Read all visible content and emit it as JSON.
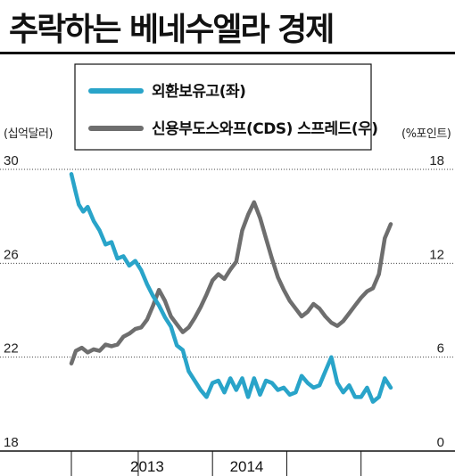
{
  "title": "추락하는 베네수엘라 경제",
  "colors": {
    "fx": "#29a4c9",
    "cds": "#6e6e6e"
  },
  "chart_data": {
    "type": "line",
    "title": "추락하는 베네수엘라 경제",
    "y_left": {
      "unit": "(십억달러)",
      "range": [
        18,
        30
      ],
      "ticks": [
        "30",
        "26",
        "22",
        "18"
      ]
    },
    "y_right": {
      "unit": "(%포인트)",
      "range": [
        0,
        18
      ],
      "ticks": [
        "18",
        "12",
        "6",
        "0"
      ]
    },
    "x_labels": [
      "2013",
      "2014"
    ],
    "x_range": [
      2012.55,
      2014.7
    ],
    "grid": "horizontal dotted",
    "series": [
      {
        "name": "외환보유고(좌)",
        "axis": "left",
        "points": [
          [
            2012.55,
            29.8
          ],
          [
            2012.58,
            29.0
          ],
          [
            2012.6,
            28.5
          ],
          [
            2012.63,
            28.2
          ],
          [
            2012.66,
            28.4
          ],
          [
            2012.7,
            27.8
          ],
          [
            2012.74,
            27.4
          ],
          [
            2012.78,
            26.8
          ],
          [
            2012.82,
            26.9
          ],
          [
            2012.86,
            26.2
          ],
          [
            2012.9,
            26.3
          ],
          [
            2012.94,
            25.9
          ],
          [
            2012.98,
            26.1
          ],
          [
            2013.02,
            25.7
          ],
          [
            2013.06,
            25.1
          ],
          [
            2013.1,
            24.6
          ],
          [
            2013.14,
            24.2
          ],
          [
            2013.18,
            23.7
          ],
          [
            2013.22,
            23.3
          ],
          [
            2013.26,
            22.5
          ],
          [
            2013.3,
            22.3
          ],
          [
            2013.34,
            21.4
          ],
          [
            2013.38,
            21.0
          ],
          [
            2013.42,
            20.6
          ],
          [
            2013.46,
            20.3
          ],
          [
            2013.5,
            20.9
          ],
          [
            2013.54,
            21.0
          ],
          [
            2013.58,
            20.5
          ],
          [
            2013.62,
            21.1
          ],
          [
            2013.66,
            20.6
          ],
          [
            2013.7,
            21.1
          ],
          [
            2013.74,
            20.3
          ],
          [
            2013.78,
            21.1
          ],
          [
            2013.82,
            20.4
          ],
          [
            2013.86,
            21.0
          ],
          [
            2013.9,
            20.9
          ],
          [
            2013.94,
            20.6
          ],
          [
            2013.98,
            20.7
          ],
          [
            2014.02,
            20.4
          ],
          [
            2014.06,
            20.5
          ],
          [
            2014.1,
            21.2
          ],
          [
            2014.14,
            20.9
          ],
          [
            2014.18,
            20.7
          ],
          [
            2014.22,
            20.8
          ],
          [
            2014.26,
            21.4
          ],
          [
            2014.3,
            22.0
          ],
          [
            2014.34,
            20.9
          ],
          [
            2014.38,
            20.5
          ],
          [
            2014.42,
            20.8
          ],
          [
            2014.46,
            20.3
          ],
          [
            2014.5,
            20.3
          ],
          [
            2014.54,
            20.7
          ],
          [
            2014.58,
            20.1
          ],
          [
            2014.62,
            20.3
          ],
          [
            2014.66,
            21.1
          ],
          [
            2014.7,
            20.7
          ]
        ]
      },
      {
        "name": "신용부도스와프(CDS) 스프레드(우)",
        "axis": "right",
        "points": [
          [
            2012.55,
            5.6
          ],
          [
            2012.58,
            6.4
          ],
          [
            2012.62,
            6.6
          ],
          [
            2012.66,
            6.3
          ],
          [
            2012.7,
            6.5
          ],
          [
            2012.74,
            6.4
          ],
          [
            2012.78,
            6.8
          ],
          [
            2012.82,
            6.7
          ],
          [
            2012.86,
            6.8
          ],
          [
            2012.9,
            7.3
          ],
          [
            2012.94,
            7.5
          ],
          [
            2012.98,
            7.8
          ],
          [
            2013.02,
            7.9
          ],
          [
            2013.06,
            8.4
          ],
          [
            2013.1,
            9.3
          ],
          [
            2013.14,
            10.3
          ],
          [
            2013.18,
            9.6
          ],
          [
            2013.22,
            8.6
          ],
          [
            2013.26,
            8.1
          ],
          [
            2013.3,
            7.6
          ],
          [
            2013.34,
            7.9
          ],
          [
            2013.38,
            8.5
          ],
          [
            2013.42,
            9.2
          ],
          [
            2013.46,
            10.0
          ],
          [
            2013.5,
            10.9
          ],
          [
            2013.54,
            11.3
          ],
          [
            2013.58,
            11.0
          ],
          [
            2013.62,
            11.6
          ],
          [
            2013.66,
            12.1
          ],
          [
            2013.7,
            14.1
          ],
          [
            2013.74,
            15.1
          ],
          [
            2013.78,
            15.9
          ],
          [
            2013.82,
            14.9
          ],
          [
            2013.86,
            13.6
          ],
          [
            2013.9,
            12.3
          ],
          [
            2013.94,
            11.1
          ],
          [
            2013.98,
            10.3
          ],
          [
            2014.02,
            9.6
          ],
          [
            2014.06,
            9.1
          ],
          [
            2014.1,
            8.6
          ],
          [
            2014.14,
            8.9
          ],
          [
            2014.18,
            9.4
          ],
          [
            2014.22,
            9.1
          ],
          [
            2014.26,
            8.6
          ],
          [
            2014.3,
            8.2
          ],
          [
            2014.34,
            8.0
          ],
          [
            2014.38,
            8.3
          ],
          [
            2014.42,
            8.8
          ],
          [
            2014.46,
            9.3
          ],
          [
            2014.5,
            9.8
          ],
          [
            2014.54,
            10.2
          ],
          [
            2014.58,
            10.4
          ],
          [
            2014.62,
            11.3
          ],
          [
            2014.66,
            13.6
          ],
          [
            2014.7,
            14.5
          ]
        ]
      }
    ]
  }
}
